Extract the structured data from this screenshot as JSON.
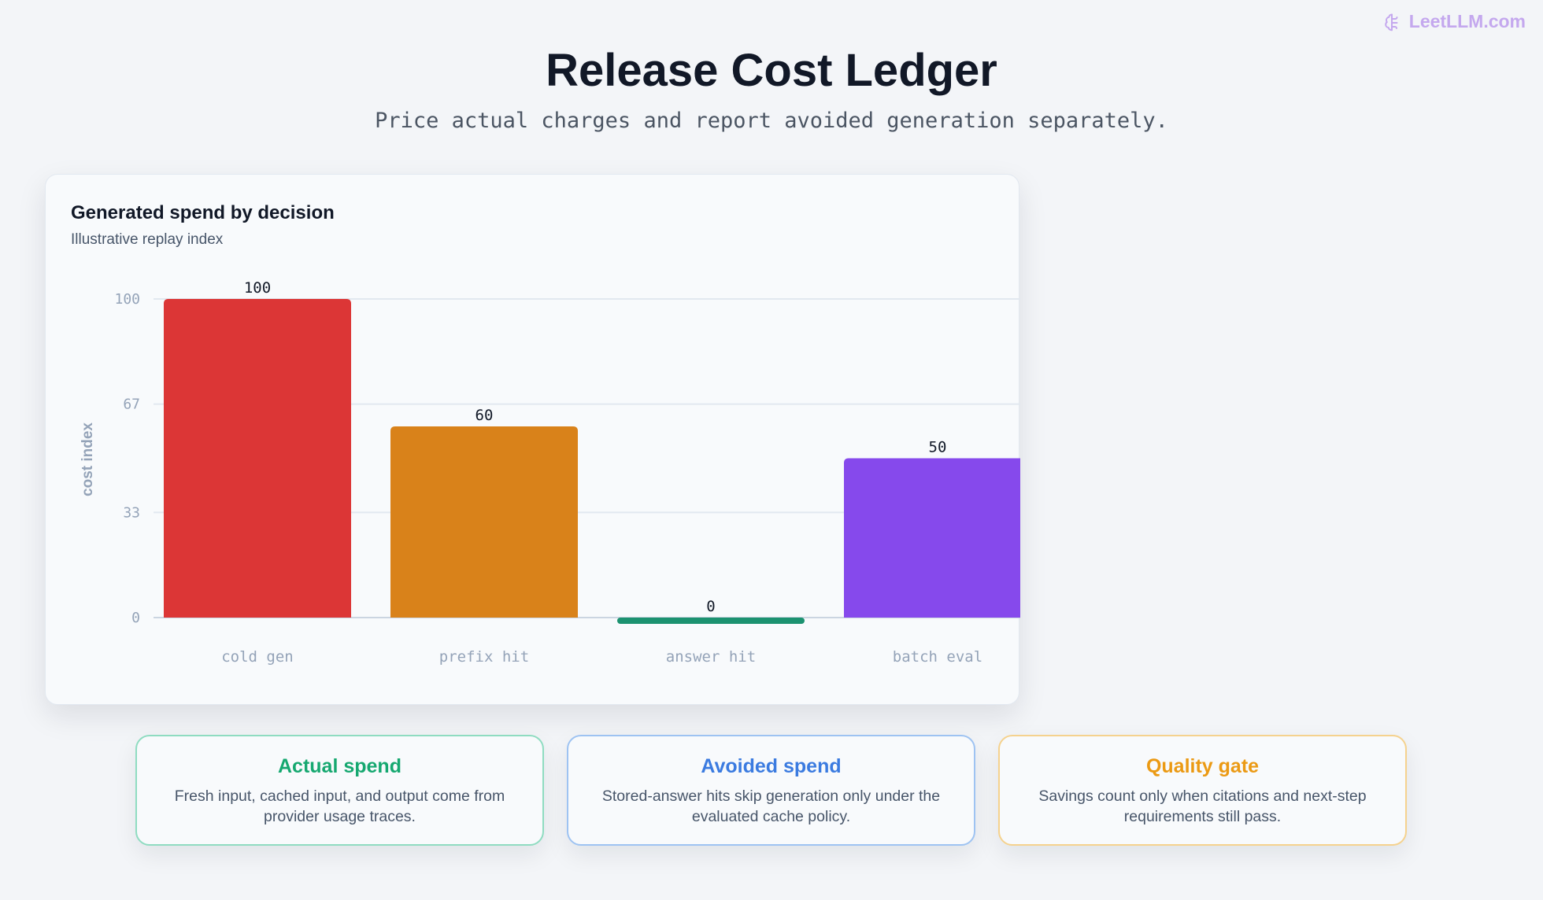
{
  "brand": {
    "name": "LeetLLM.com",
    "icon": "brain-icon",
    "color": "#c4a8ee"
  },
  "header": {
    "title": "Release Cost Ledger",
    "subtitle": "Price actual charges and report avoided generation separately."
  },
  "chart_data": {
    "type": "bar",
    "title": "Generated spend by decision",
    "subtitle": "Illustrative replay index",
    "xlabel": "",
    "ylabel": "cost index",
    "categories": [
      "cold gen",
      "prefix hit",
      "answer hit",
      "batch eval"
    ],
    "values": [
      100,
      60,
      0,
      50
    ],
    "value_labels": [
      "100",
      "60",
      "0",
      "50"
    ],
    "colors": [
      "#dc3636",
      "#d9821a",
      "#1c9270",
      "#8649ec"
    ],
    "yticks": [
      0,
      33,
      67,
      100
    ],
    "ylim": [
      0,
      100
    ],
    "grid": true,
    "legend": "none"
  },
  "cards": [
    {
      "title": "Actual spend",
      "body": "Fresh input, cached input, and output come from provider usage traces.",
      "color": "#16a870",
      "border": "#8fdcc1"
    },
    {
      "title": "Avoided spend",
      "body": "Stored-answer hits skip generation only under the evaluated cache policy.",
      "color": "#3b7be0",
      "border": "#9ec3f2"
    },
    {
      "title": "Quality gate",
      "body": "Savings count only when citations and next-step requirements still pass.",
      "color": "#eb9a14",
      "border": "#f5d28e"
    }
  ]
}
